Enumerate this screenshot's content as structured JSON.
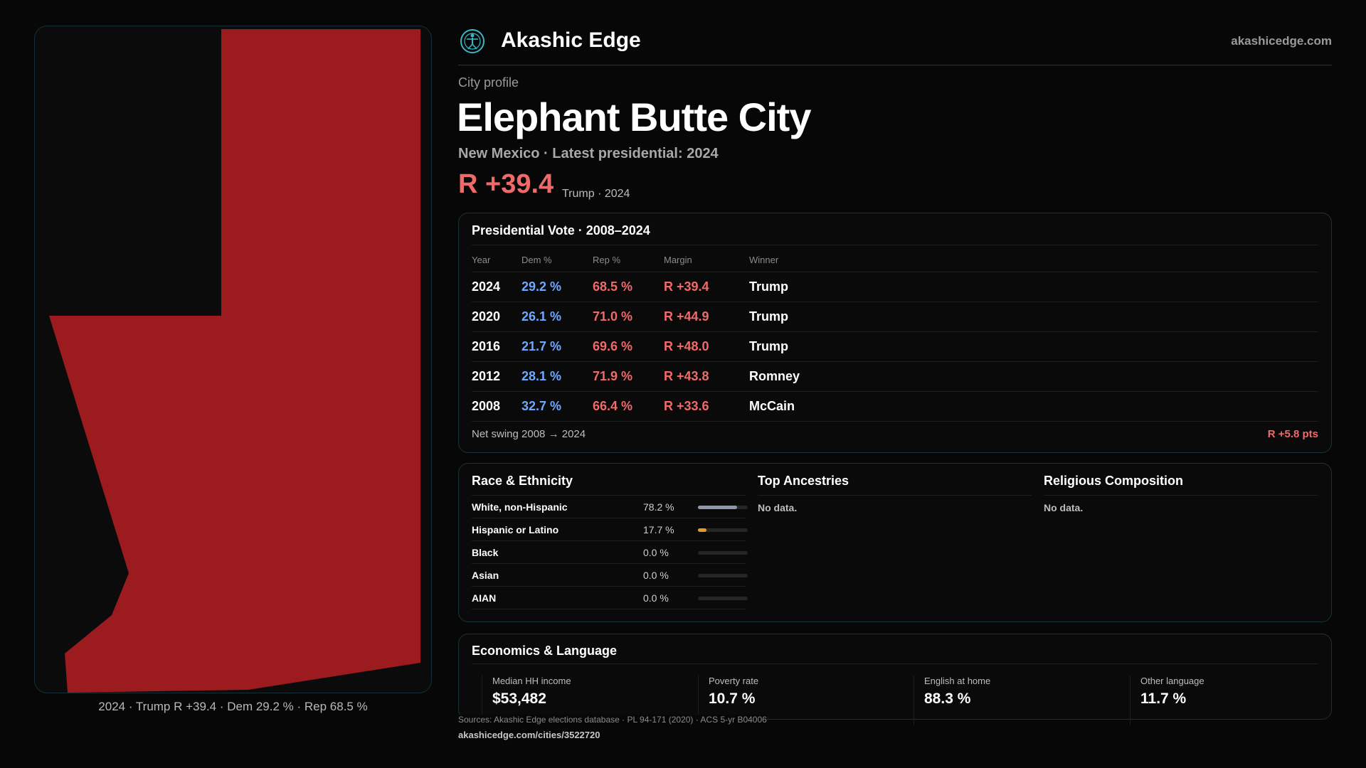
{
  "header": {
    "brand": "Akashic Edge",
    "site": "akashicedge.com",
    "logo_icon": "compass-figure-icon"
  },
  "profile": {
    "eyebrow": "City profile",
    "city": "Elephant Butte City",
    "subtitle": "New Mexico · Latest presidential: 2024",
    "margin": "R +39.4",
    "margin_note": "Trump · 2024",
    "map_caption": "2024 · Trump R +39.4 · Dem 29.2 % · Rep 68.5 %",
    "map_fill_color": "#9b1b1e"
  },
  "vote": {
    "title": "Presidential Vote · 2008–2024",
    "headers": [
      "Year",
      "Dem %",
      "Rep %",
      "Margin",
      "Winner"
    ],
    "rows": [
      {
        "year": "2024",
        "dem": "29.2 %",
        "rep": "68.5 %",
        "margin": "R +39.4",
        "winner": "Trump"
      },
      {
        "year": "2020",
        "dem": "26.1 %",
        "rep": "71.0 %",
        "margin": "R +44.9",
        "winner": "Trump"
      },
      {
        "year": "2016",
        "dem": "21.7 %",
        "rep": "69.6 %",
        "margin": "R +48.0",
        "winner": "Trump"
      },
      {
        "year": "2012",
        "dem": "28.1 %",
        "rep": "71.9 %",
        "margin": "R +43.8",
        "winner": "Romney"
      },
      {
        "year": "2008",
        "dem": "32.7 %",
        "rep": "66.4 %",
        "margin": "R +33.6",
        "winner": "McCain"
      }
    ],
    "swing_label": "Net swing 2008 → 2024",
    "swing_value": "R +5.8 pts"
  },
  "demographics": {
    "race_title": "Race & Ethnicity",
    "race": [
      {
        "label": "White, non-Hispanic",
        "value": "78.2 %",
        "pct": 78.2,
        "color": "#8e98ab"
      },
      {
        "label": "Hispanic or Latino",
        "value": "17.7 %",
        "pct": 17.7,
        "color": "#e29a2d"
      },
      {
        "label": "Black",
        "value": "0.0 %",
        "pct": 0,
        "color": "#8e98ab"
      },
      {
        "label": "Asian",
        "value": "0.0 %",
        "pct": 0,
        "color": "#8e98ab"
      },
      {
        "label": "AIAN",
        "value": "0.0 %",
        "pct": 0,
        "color": "#8e98ab"
      }
    ],
    "ancestry_title": "Top Ancestries",
    "ancestry_empty": "No data.",
    "religion_title": "Religious Composition",
    "religion_empty": "No data."
  },
  "economics": {
    "title": "Economics & Language",
    "stats": [
      {
        "label": "Median HH income",
        "value": "$53,482"
      },
      {
        "label": "Poverty rate",
        "value": "10.7 %"
      },
      {
        "label": "English at home",
        "value": "88.3 %"
      },
      {
        "label": "Other language",
        "value": "11.7 %"
      }
    ]
  },
  "footer": {
    "sources": "Sources: Akashic Edge elections database · PL 94-171 (2020) · ACS 5-yr B04006",
    "url": "akashicedge.com/cities/3522720"
  }
}
